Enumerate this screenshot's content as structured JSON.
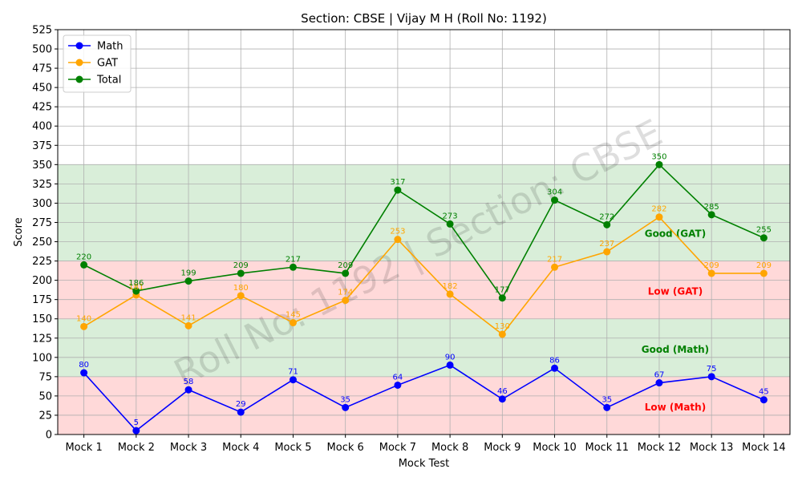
{
  "chart_data": {
    "type": "line",
    "title": "Section: CBSE | Vijay M H (Roll No: 1192)",
    "xlabel": "Mock Test",
    "ylabel": "Score",
    "ylim": [
      0,
      525
    ],
    "yticks": [
      0,
      25,
      50,
      75,
      100,
      125,
      150,
      175,
      200,
      225,
      250,
      275,
      300,
      325,
      350,
      375,
      400,
      425,
      450,
      475,
      500,
      525
    ],
    "grid": true,
    "legend_position": "top-left",
    "categories": [
      "Mock 1",
      "Mock 2",
      "Mock 3",
      "Mock 4",
      "Mock 5",
      "Mock 6",
      "Mock 7",
      "Mock 8",
      "Mock 9",
      "Mock 10",
      "Mock 11",
      "Mock 12",
      "Mock 13",
      "Mock 14"
    ],
    "series": [
      {
        "name": "Math",
        "color": "#0000ff",
        "values": [
          80,
          5,
          58,
          29,
          71,
          35,
          64,
          90,
          46,
          86,
          35,
          67,
          75,
          45
        ]
      },
      {
        "name": "GAT",
        "color": "#ffa500",
        "values": [
          140,
          181,
          141,
          180,
          145,
          174,
          253,
          182,
          130,
          217,
          237,
          282,
          209,
          209
        ]
      },
      {
        "name": "Total",
        "color": "#008000",
        "values": [
          220,
          186,
          199,
          209,
          217,
          209,
          317,
          273,
          177,
          304,
          272,
          350,
          285,
          255
        ]
      }
    ],
    "bands": [
      {
        "label": "Low (Math)",
        "from": 0,
        "to": 75,
        "fill": "#ffcccc",
        "text_color": "#ff0000"
      },
      {
        "label": "Good (Math)",
        "from": 75,
        "to": 150,
        "fill": "#cce8cc",
        "text_color": "#008000"
      },
      {
        "label": "Low (GAT)",
        "from": 150,
        "to": 225,
        "fill": "#ffcccc",
        "text_color": "#ff0000"
      },
      {
        "label": "Good (GAT)",
        "from": 225,
        "to": 350,
        "fill": "#cce8cc",
        "text_color": "#008000"
      }
    ],
    "watermark": "Roll No: 1192 | Section: CBSE"
  }
}
